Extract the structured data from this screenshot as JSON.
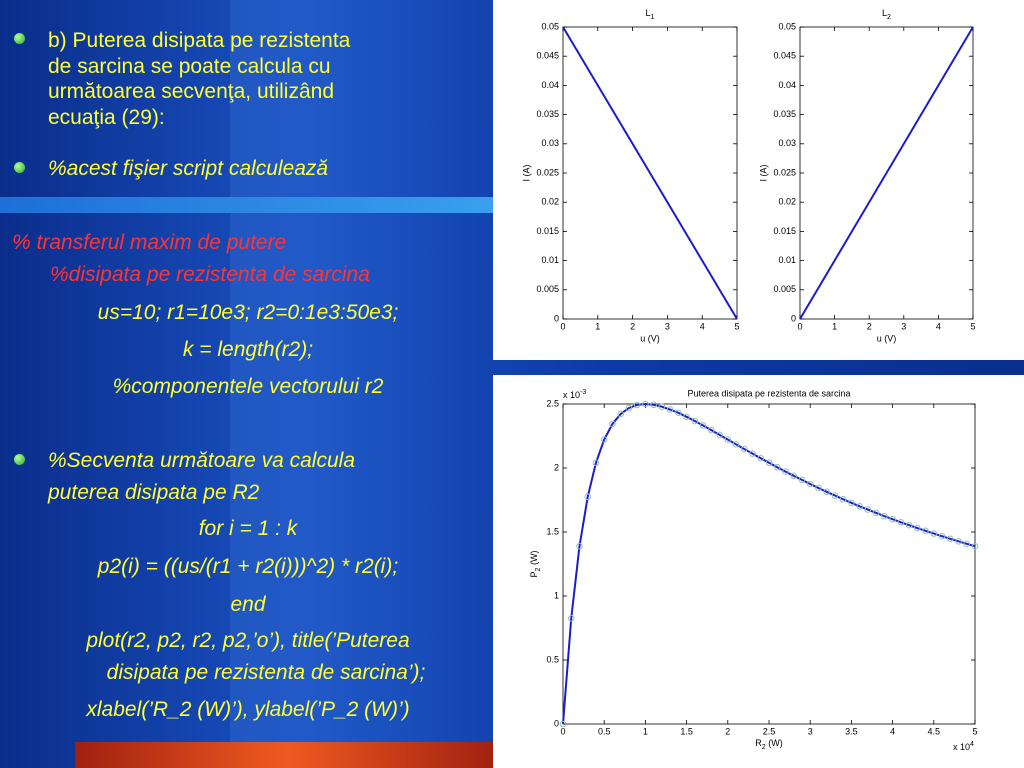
{
  "slide": {
    "bullet1": [
      "b) Puterea disipata pe rezistenta",
      "de sarcina se poate calcula cu",
      "următoarea secvenţa, utilizând",
      "ecuaţia (29):"
    ],
    "bullet2": "%acest fişier script calculează",
    "comment": [
      "% transferul maxim de putere",
      "%disipata pe rezistenta de sarcina"
    ],
    "code1": [
      "us=10; r1=10e3; r2=0:1e3:50e3;",
      "k = length(r2);",
      "%componentele vectorului r2"
    ],
    "bullet3": [
      "%Secventa următoare va calcula",
      "puterea disipata pe R2"
    ],
    "code2": [
      "for i = 1 : k",
      "p2(i) = ((us/(r1 + r2(i)))^2) * r2(i);",
      "end",
      "plot(r2, p2, r2, p2,’o’), title(’Puterea",
      "disipata pe rezistenta de sarcina’);",
      "xlabel(’R_2 (W)’), ylabel(’P_2 (W)’)"
    ]
  },
  "chart_data": [
    {
      "type": "line",
      "title": {
        "base": "L",
        "sub": "1"
      },
      "xlabel": "u (V)",
      "ylabel": "I (A)",
      "x": [
        0,
        5
      ],
      "series": [
        {
          "color": "#1c1cc8",
          "values": [
            0.05,
            0
          ]
        }
      ],
      "xlim": [
        0,
        5
      ],
      "ylim": [
        0,
        0.05
      ],
      "xticks": [
        0,
        1,
        2,
        3,
        4,
        5
      ],
      "yticks": [
        0,
        0.005,
        0.01,
        0.015,
        0.02,
        0.025,
        0.03,
        0.035,
        0.04,
        0.045,
        0.05
      ]
    },
    {
      "type": "line",
      "title": {
        "base": "L",
        "sub": "2"
      },
      "xlabel": "u (V)",
      "ylabel": "I (A)",
      "x": [
        0,
        5
      ],
      "series": [
        {
          "color": "#1c1cc8",
          "values": [
            0,
            0.05
          ]
        }
      ],
      "xlim": [
        0,
        5
      ],
      "ylim": [
        0,
        0.05
      ],
      "xticks": [
        0,
        1,
        2,
        3,
        4,
        5
      ],
      "yticks": [
        0,
        0.005,
        0.01,
        0.015,
        0.02,
        0.025,
        0.03,
        0.035,
        0.04,
        0.045,
        0.05
      ]
    },
    {
      "type": "line",
      "title": "Puterea disipata pe rezistenta de sarcina",
      "xlabel": {
        "base": "R",
        "sub": "2",
        "rest": " (W)"
      },
      "ylabel": {
        "base": "P",
        "sub": "2",
        "rest": " (W)"
      },
      "x_multiplier": {
        "base": "x 10",
        "sup": "4"
      },
      "y_multiplier": {
        "base": "x 10",
        "sup": "-3"
      },
      "x": [
        0,
        0.1,
        0.2,
        0.3,
        0.4,
        0.5,
        0.6,
        0.7,
        0.8,
        0.9,
        1,
        1.1,
        1.2,
        1.3,
        1.4,
        1.5,
        1.6,
        1.7,
        1.8,
        1.9,
        2,
        2.1,
        2.2,
        2.3,
        2.4,
        2.5,
        2.6,
        2.7,
        2.8,
        2.9,
        3,
        3.1,
        3.2,
        3.3,
        3.4,
        3.5,
        3.6,
        3.7,
        3.8,
        3.9,
        4,
        4.1,
        4.2,
        4.3,
        4.4,
        4.5,
        4.6,
        4.7,
        4.8,
        4.9,
        5
      ],
      "series": [
        {
          "color": "#1c1cc8",
          "marker_color": "#8fbfc0",
          "values": [
            0,
            0.826,
            1.389,
            1.775,
            2.041,
            2.222,
            2.344,
            2.422,
            2.469,
            2.493,
            2.5,
            2.494,
            2.479,
            2.457,
            2.431,
            2.4,
            2.367,
            2.332,
            2.296,
            2.259,
            2.222,
            2.185,
            2.148,
            2.112,
            2.076,
            2.041,
            2.006,
            1.972,
            1.939,
            1.907,
            1.875,
            1.844,
            1.814,
            1.785,
            1.756,
            1.728,
            1.701,
            1.675,
            1.649,
            1.624,
            1.6,
            1.576,
            1.553,
            1.531,
            1.509,
            1.488,
            1.467,
            1.447,
            1.427,
            1.408,
            1.389
          ]
        }
      ],
      "xlim": [
        0,
        5
      ],
      "ylim": [
        0,
        2.5
      ],
      "xticks": [
        0,
        0.5,
        1,
        1.5,
        2,
        2.5,
        3,
        3.5,
        4,
        4.5,
        5
      ],
      "yticks": [
        0,
        0.5,
        1,
        1.5,
        2,
        2.5
      ]
    }
  ]
}
